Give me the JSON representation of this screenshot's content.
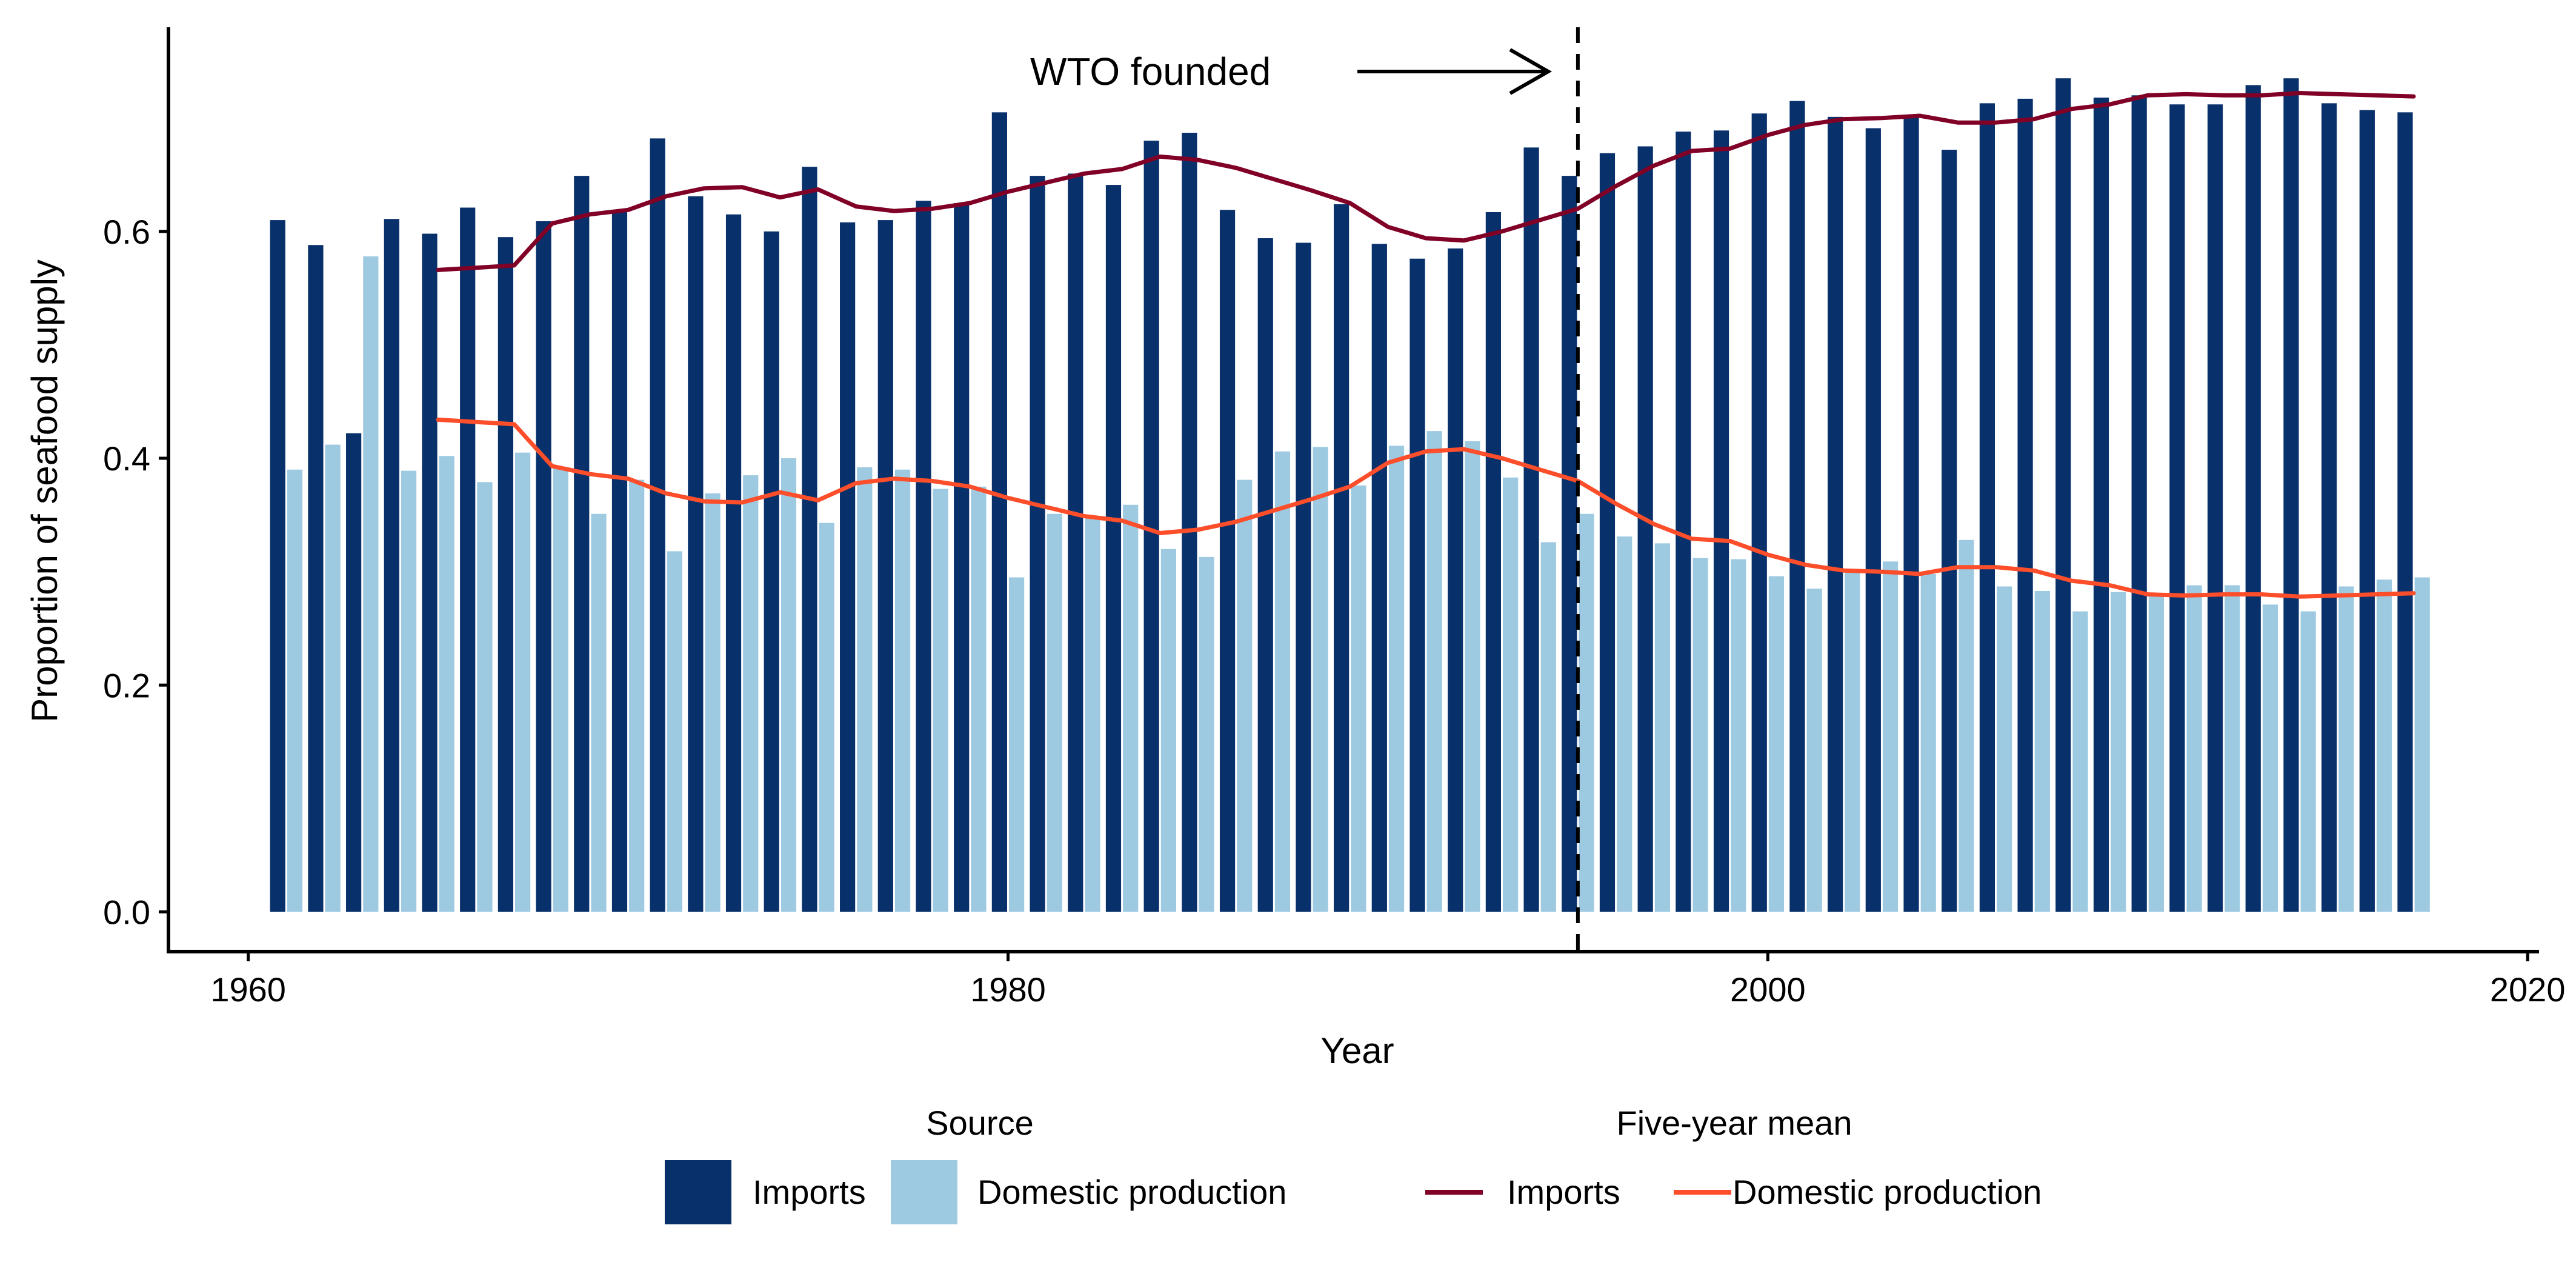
{
  "chart_data": {
    "type": "bar",
    "xlabel": "Year",
    "ylabel": "Proportion of seafood supply",
    "xlim": [
      1957.9,
      2020.3
    ],
    "ylim": [
      -0.035,
      0.78
    ],
    "x_ticks": [
      1960,
      1980,
      2000,
      2020
    ],
    "x_tick_labels": [
      "1960",
      "1980",
      "2000",
      "2020"
    ],
    "y_ticks": [
      0.0,
      0.2,
      0.4,
      0.6
    ],
    "y_tick_labels": [
      "0.0",
      "0.2",
      "0.4",
      "0.6"
    ],
    "grid": false,
    "legend_position": "bottom",
    "years": [
      1961,
      1962,
      1963,
      1964,
      1965,
      1966,
      1967,
      1968,
      1969,
      1970,
      1971,
      1972,
      1973,
      1974,
      1975,
      1976,
      1977,
      1978,
      1979,
      1980,
      1981,
      1982,
      1983,
      1984,
      1985,
      1986,
      1987,
      1988,
      1989,
      1990,
      1991,
      1992,
      1993,
      1994,
      1995,
      1996,
      1997,
      1998,
      1999,
      2000,
      2001,
      2002,
      2003,
      2004,
      2005,
      2006,
      2007,
      2008,
      2009,
      2010,
      2011,
      2012,
      2013,
      2014,
      2015,
      2016,
      2017
    ],
    "bar_legend_title": "Source",
    "bar_series": [
      {
        "name": "Imports",
        "color": "#08306b",
        "values": [
          0.61,
          0.588,
          0.422,
          0.611,
          0.598,
          0.621,
          0.595,
          0.609,
          0.649,
          0.619,
          0.682,
          0.631,
          0.615,
          0.6,
          0.657,
          0.608,
          0.61,
          0.627,
          0.625,
          0.705,
          0.649,
          0.651,
          0.641,
          0.68,
          0.687,
          0.619,
          0.594,
          0.59,
          0.624,
          0.589,
          0.576,
          0.585,
          0.617,
          0.674,
          0.649,
          0.669,
          0.675,
          0.688,
          0.689,
          0.704,
          0.715,
          0.701,
          0.691,
          0.702,
          0.672,
          0.713,
          0.717,
          0.735,
          0.718,
          0.72,
          0.712,
          0.712,
          0.729,
          0.735,
          0.713,
          0.707,
          0.705
        ]
      },
      {
        "name": "Domestic production",
        "color": "#9ecae1",
        "values": [
          0.39,
          0.412,
          0.578,
          0.389,
          0.402,
          0.379,
          0.405,
          0.391,
          0.351,
          0.381,
          0.318,
          0.369,
          0.385,
          0.4,
          0.343,
          0.392,
          0.39,
          0.373,
          0.375,
          0.295,
          0.351,
          0.349,
          0.359,
          0.32,
          0.313,
          0.381,
          0.406,
          0.41,
          0.376,
          0.411,
          0.424,
          0.415,
          0.383,
          0.326,
          0.351,
          0.331,
          0.325,
          0.312,
          0.311,
          0.296,
          0.285,
          0.299,
          0.309,
          0.298,
          0.328,
          0.287,
          0.283,
          0.265,
          0.282,
          0.28,
          0.288,
          0.288,
          0.271,
          0.265,
          0.287,
          0.293,
          0.295
        ]
      }
    ],
    "line_legend_title": "Five-year mean",
    "line_series": [
      {
        "name": "Imports",
        "color": "#800026",
        "x": [
          1965,
          1966,
          1967,
          1968,
          1969,
          1970,
          1971,
          1972,
          1973,
          1974,
          1975,
          1976,
          1977,
          1978,
          1979,
          1980,
          1981,
          1982,
          1983,
          1984,
          1985,
          1986,
          1987,
          1988,
          1989,
          1990,
          1991,
          1992,
          1993,
          1994,
          1995,
          1996,
          1997,
          1998,
          1999,
          2000,
          2001,
          2002,
          2003,
          2004,
          2005,
          2006,
          2007,
          2008,
          2009,
          2010,
          2011,
          2012,
          2013,
          2014,
          2015,
          2016,
          2017
        ],
        "values": [
          0.566,
          0.568,
          0.57,
          0.607,
          0.615,
          0.619,
          0.631,
          0.638,
          0.639,
          0.63,
          0.637,
          0.622,
          0.618,
          0.62,
          0.625,
          0.635,
          0.643,
          0.651,
          0.655,
          0.666,
          0.663,
          0.656,
          0.646,
          0.636,
          0.625,
          0.604,
          0.594,
          0.592,
          0.6,
          0.61,
          0.62,
          0.64,
          0.658,
          0.671,
          0.673,
          0.685,
          0.694,
          0.699,
          0.7,
          0.702,
          0.696,
          0.696,
          0.699,
          0.708,
          0.712,
          0.72,
          0.721,
          0.72,
          0.72,
          0.722,
          0.721,
          0.72,
          0.719
        ]
      },
      {
        "name": "Domestic production",
        "color": "#fc4e2a",
        "x": [
          1965,
          1966,
          1967,
          1968,
          1969,
          1970,
          1971,
          1972,
          1973,
          1974,
          1975,
          1976,
          1977,
          1978,
          1979,
          1980,
          1981,
          1982,
          1983,
          1984,
          1985,
          1986,
          1987,
          1988,
          1989,
          1990,
          1991,
          1992,
          1993,
          1994,
          1995,
          1996,
          1997,
          1998,
          1999,
          2000,
          2001,
          2002,
          2003,
          2004,
          2005,
          2006,
          2007,
          2008,
          2009,
          2010,
          2011,
          2012,
          2013,
          2014,
          2015,
          2016,
          2017
        ],
        "values": [
          0.434,
          0.432,
          0.43,
          0.393,
          0.386,
          0.382,
          0.369,
          0.362,
          0.361,
          0.37,
          0.363,
          0.378,
          0.382,
          0.38,
          0.375,
          0.365,
          0.357,
          0.349,
          0.345,
          0.334,
          0.337,
          0.344,
          0.354,
          0.364,
          0.375,
          0.396,
          0.406,
          0.408,
          0.4,
          0.39,
          0.38,
          0.36,
          0.342,
          0.329,
          0.327,
          0.315,
          0.306,
          0.301,
          0.3,
          0.298,
          0.304,
          0.304,
          0.301,
          0.292,
          0.288,
          0.28,
          0.279,
          0.28,
          0.28,
          0.278,
          0.279,
          0.28,
          0.281
        ]
      }
    ],
    "vline": {
      "x": 1995,
      "style": "dashed"
    },
    "annotation": {
      "text": "WTO founded",
      "arrow_to_x": 1995
    }
  }
}
